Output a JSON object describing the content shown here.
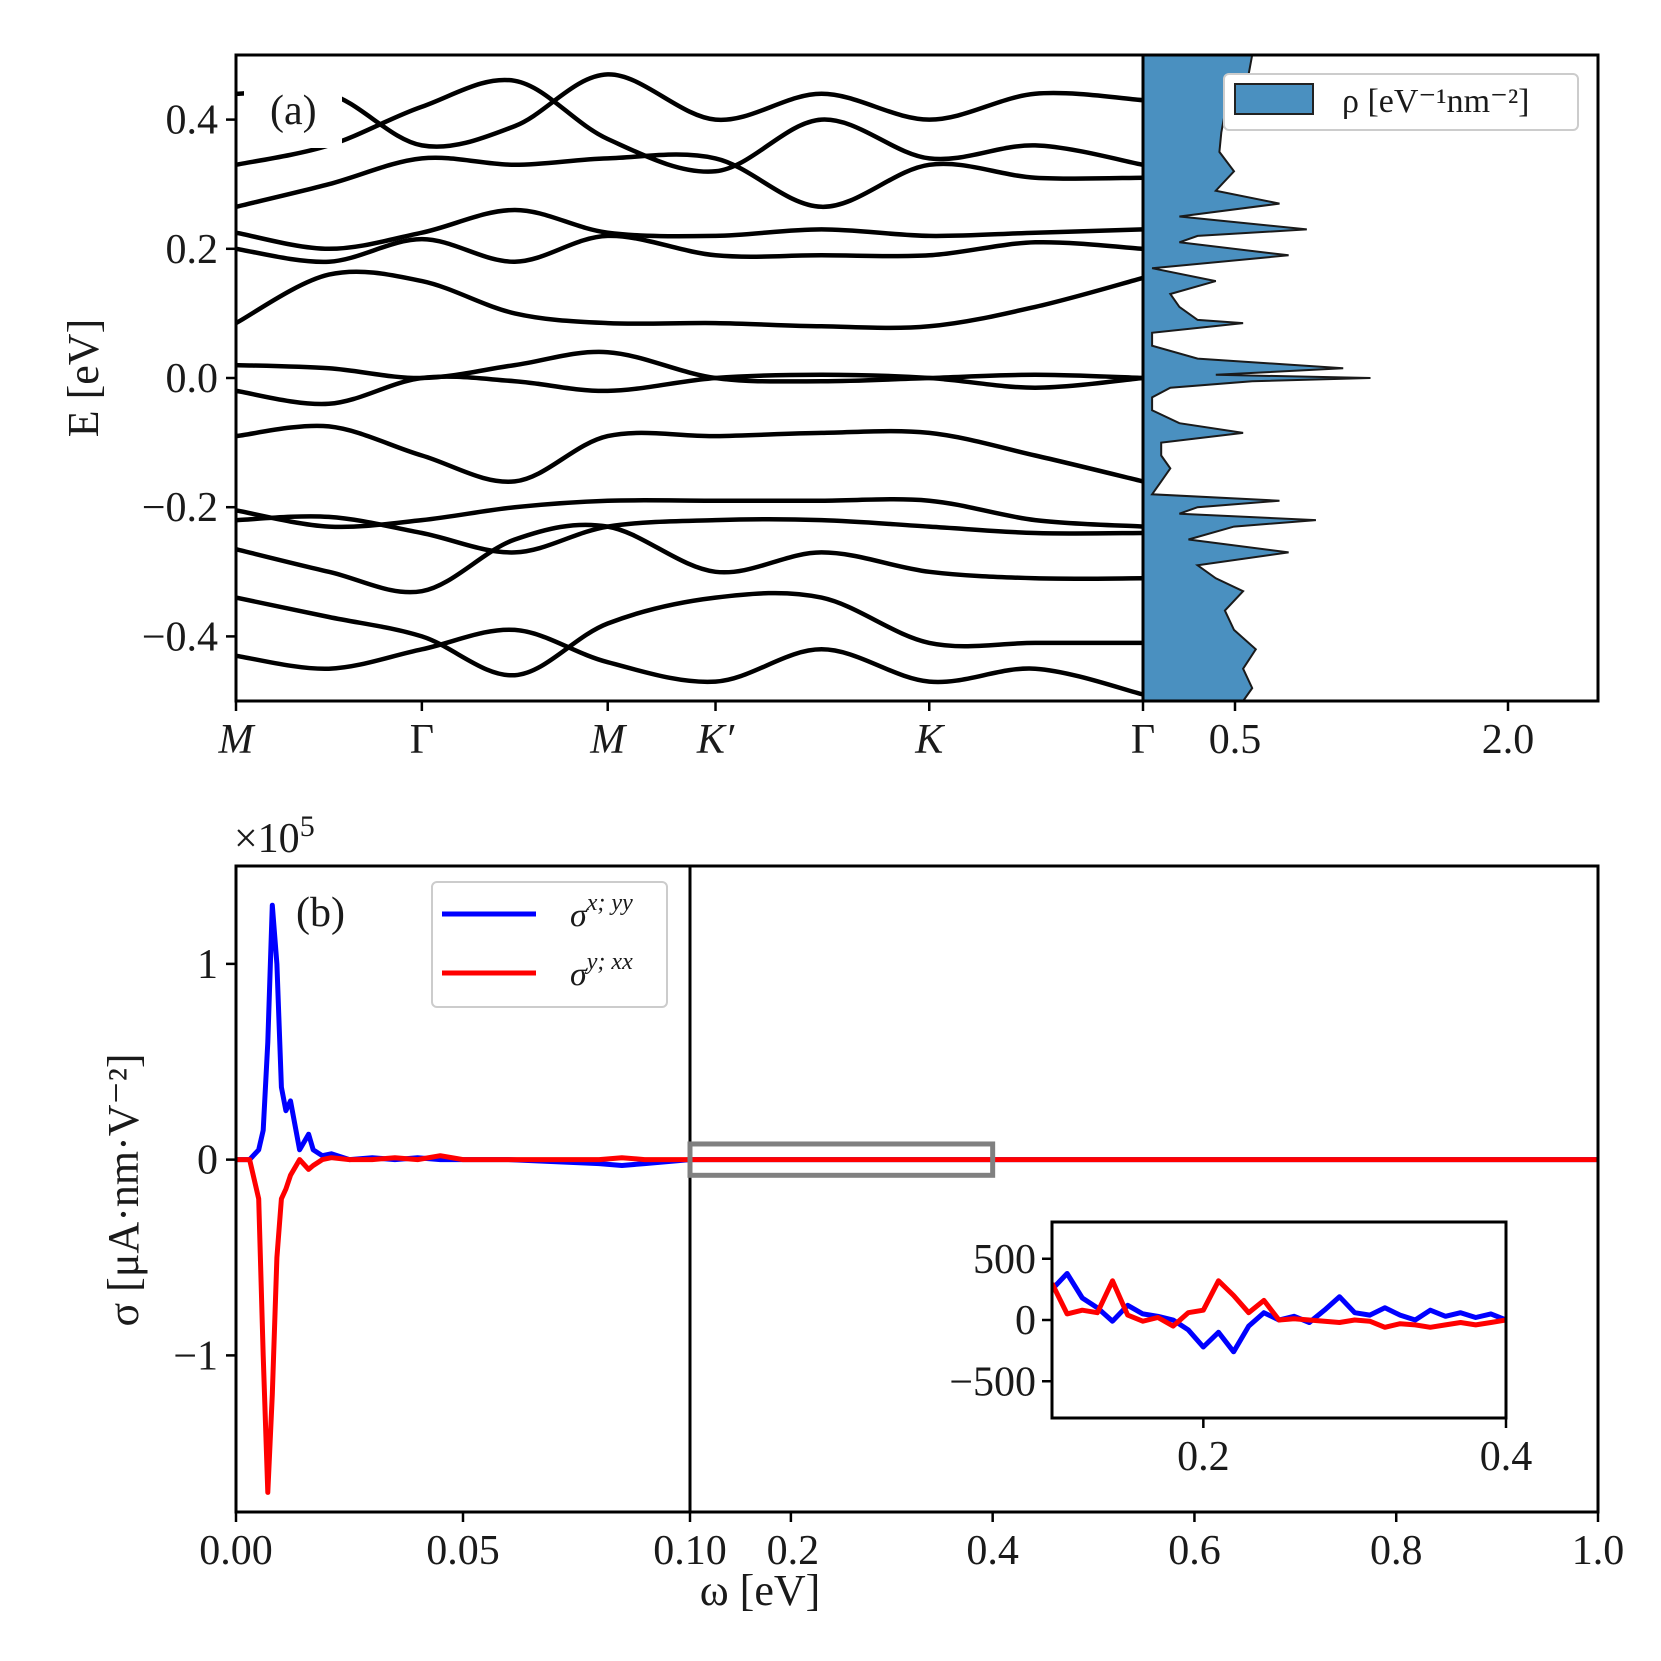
{
  "chart_data": [
    {
      "type": "line",
      "panel": "(a)",
      "ylabel": "E [eV]",
      "ylim": [
        -0.5,
        0.5
      ],
      "yticks": [
        "0.4",
        "0.2",
        "0.0",
        "−0.2",
        "−0.4"
      ],
      "ytick_values": [
        0.4,
        0.2,
        0.0,
        -0.2,
        -0.4
      ],
      "xticks": [
        "M",
        "Γ",
        "M",
        "K′",
        "K",
        "Γ"
      ],
      "xtick_values": [
        0,
        1,
        2,
        2.58,
        3.73,
        4.88
      ],
      "xlim": [
        0,
        4.88
      ],
      "description": "band structure along M-Γ-M-K'-K-Γ",
      "bands": [
        {
          "k": [
            0,
            0.5,
            1,
            1.5,
            2,
            2.58,
            3.15,
            3.73,
            4.3,
            4.88
          ],
          "E": [
            0.085,
            0.16,
            0.15,
            0.1,
            0.085,
            0.085,
            0.08,
            0.08,
            0.11,
            0.155
          ]
        },
        {
          "k": [
            0,
            0.5,
            1,
            1.5,
            2,
            2.58,
            3.15,
            3.73,
            4.3,
            4.88
          ],
          "E": [
            0.02,
            0.015,
            0.0,
            0.02,
            0.04,
            0.0,
            -0.005,
            0.0,
            0.005,
            0.0
          ]
        },
        {
          "k": [
            0,
            0.5,
            1,
            1.5,
            2,
            2.58,
            3.15,
            3.73,
            4.3,
            4.88
          ],
          "E": [
            -0.02,
            -0.04,
            0.0,
            -0.005,
            -0.02,
            0.0,
            0.005,
            0.0,
            -0.015,
            0.0
          ]
        },
        {
          "k": [
            0,
            0.5,
            1,
            1.5,
            2,
            2.58,
            3.15,
            3.73,
            4.3,
            4.88
          ],
          "E": [
            -0.09,
            -0.075,
            -0.12,
            -0.16,
            -0.09,
            -0.09,
            -0.085,
            -0.085,
            -0.12,
            -0.16
          ]
        },
        {
          "k": [
            0,
            0.5,
            1,
            1.5,
            2,
            2.58,
            3.15,
            3.73,
            4.3,
            4.88
          ],
          "E": [
            0.2,
            0.18,
            0.215,
            0.18,
            0.22,
            0.19,
            0.19,
            0.19,
            0.21,
            0.2
          ]
        },
        {
          "k": [
            0,
            0.5,
            1,
            1.5,
            2,
            2.58,
            3.15,
            3.73,
            4.3,
            4.88
          ],
          "E": [
            0.225,
            0.2,
            0.225,
            0.26,
            0.225,
            0.22,
            0.23,
            0.22,
            0.225,
            0.23
          ]
        },
        {
          "k": [
            0,
            0.5,
            1,
            1.5,
            2,
            2.58,
            3.15,
            3.73,
            4.3,
            4.88
          ],
          "E": [
            -0.205,
            -0.23,
            -0.22,
            -0.2,
            -0.19,
            -0.19,
            -0.19,
            -0.19,
            -0.22,
            -0.23
          ]
        },
        {
          "k": [
            0,
            0.5,
            1,
            1.5,
            2,
            2.58,
            3.15,
            3.73,
            4.3,
            4.88
          ],
          "E": [
            -0.22,
            -0.215,
            -0.24,
            -0.27,
            -0.23,
            -0.22,
            -0.22,
            -0.23,
            -0.24,
            -0.24
          ]
        },
        {
          "k": [
            0,
            0.5,
            1,
            1.5,
            2,
            2.58,
            3.15,
            3.73,
            4.3,
            4.88
          ],
          "E": [
            0.265,
            0.3,
            0.34,
            0.33,
            0.34,
            0.34,
            0.265,
            0.33,
            0.31,
            0.31
          ]
        },
        {
          "k": [
            0,
            0.5,
            1,
            1.5,
            2,
            2.58,
            3.15,
            3.73,
            4.3,
            4.88
          ],
          "E": [
            -0.265,
            -0.3,
            -0.33,
            -0.25,
            -0.23,
            -0.3,
            -0.27,
            -0.3,
            -0.31,
            -0.31
          ]
        },
        {
          "k": [
            0,
            0.5,
            1,
            1.5,
            2,
            2.58,
            3.15,
            3.73,
            4.3,
            4.88
          ],
          "E": [
            0.33,
            0.36,
            0.42,
            0.46,
            0.37,
            0.32,
            0.4,
            0.34,
            0.36,
            0.33
          ]
        },
        {
          "k": [
            0,
            0.5,
            1,
            1.5,
            2,
            2.58,
            3.15,
            3.73,
            4.3,
            4.88
          ],
          "E": [
            -0.34,
            -0.37,
            -0.4,
            -0.46,
            -0.38,
            -0.34,
            -0.34,
            -0.41,
            -0.41,
            -0.41
          ]
        },
        {
          "k": [
            0,
            0.5,
            1,
            1.5,
            2,
            2.58,
            3.15,
            3.73,
            4.3,
            4.88
          ],
          "E": [
            0.44,
            0.44,
            0.36,
            0.39,
            0.47,
            0.4,
            0.44,
            0.4,
            0.44,
            0.43
          ]
        },
        {
          "k": [
            0,
            0.5,
            1,
            1.5,
            2,
            2.58,
            3.15,
            3.73,
            4.3,
            4.88
          ],
          "E": [
            -0.43,
            -0.45,
            -0.42,
            -0.39,
            -0.44,
            -0.47,
            -0.42,
            -0.47,
            -0.45,
            -0.49
          ]
        }
      ]
    },
    {
      "type": "area",
      "legend": "ρ [eV⁻¹nm⁻²]",
      "xticks": [
        "0.5",
        "2.0"
      ],
      "xlim": [
        0,
        2.5
      ],
      "ylim": [
        -0.5,
        0.5
      ],
      "E": [
        0.5,
        0.47,
        0.44,
        0.41,
        0.38,
        0.35,
        0.32,
        0.29,
        0.27,
        0.25,
        0.23,
        0.22,
        0.21,
        0.19,
        0.17,
        0.15,
        0.13,
        0.11,
        0.09,
        0.085,
        0.07,
        0.05,
        0.03,
        0.015,
        0.005,
        0.0,
        -0.005,
        -0.015,
        -0.03,
        -0.05,
        -0.07,
        -0.085,
        -0.1,
        -0.12,
        -0.14,
        -0.16,
        -0.18,
        -0.19,
        -0.2,
        -0.21,
        -0.22,
        -0.23,
        -0.25,
        -0.27,
        -0.29,
        -0.31,
        -0.33,
        -0.36,
        -0.39,
        -0.42,
        -0.45,
        -0.48,
        -0.5
      ],
      "rho": [
        0.6,
        0.58,
        0.52,
        0.45,
        0.43,
        0.42,
        0.5,
        0.4,
        0.75,
        0.2,
        0.9,
        0.3,
        0.2,
        0.8,
        0.05,
        0.4,
        0.15,
        0.2,
        0.3,
        0.55,
        0.05,
        0.05,
        0.3,
        1.1,
        0.4,
        1.25,
        0.6,
        0.15,
        0.05,
        0.05,
        0.2,
        0.55,
        0.1,
        0.1,
        0.15,
        0.1,
        0.05,
        0.75,
        0.3,
        0.2,
        0.95,
        0.5,
        0.25,
        0.8,
        0.3,
        0.4,
        0.55,
        0.45,
        0.5,
        0.62,
        0.55,
        0.6,
        0.55
      ]
    },
    {
      "type": "line",
      "panel": "(b)",
      "ylabel": "σ [μA·nm·V⁻²]",
      "xlabel": "ω [eV]",
      "y_scale_label": "×10",
      "y_scale_exp": "5",
      "ylim": [
        -1.8,
        1.5
      ],
      "yticks": [
        "1",
        "0",
        "−1"
      ],
      "ytick_values": [
        1,
        0,
        -1
      ],
      "xticks": [
        "0.00",
        "0.05",
        "0.10",
        "0.2",
        "0.4",
        "0.6",
        "0.8",
        "1.0"
      ],
      "xtick_values": [
        0.0,
        0.05,
        0.1,
        0.2,
        0.4,
        0.6,
        0.8,
        1.0
      ],
      "x_break_note": "piecewise axis: [0, 0.10] then [0.10, 1.0]",
      "series": [
        {
          "name": "σx;yy",
          "sup": "x; yy",
          "color": "#0000ff",
          "x": [
            0.0,
            0.003,
            0.005,
            0.006,
            0.007,
            0.008,
            0.009,
            0.01,
            0.011,
            0.012,
            0.014,
            0.016,
            0.017,
            0.019,
            0.021,
            0.025,
            0.03,
            0.035,
            0.04,
            0.045,
            0.05,
            0.06,
            0.07,
            0.08,
            0.085,
            0.09,
            0.1,
            0.2,
            0.4,
            0.6,
            0.8,
            1.0
          ],
          "y": [
            0.0,
            0.0,
            0.05,
            0.15,
            0.6,
            1.3,
            1.0,
            0.37,
            0.25,
            0.3,
            0.05,
            0.13,
            0.05,
            0.02,
            0.03,
            0.0,
            0.01,
            0.0,
            0.01,
            0.0,
            0.0,
            0.0,
            -0.01,
            -0.02,
            -0.03,
            -0.02,
            0.0,
            0.0,
            0.0,
            0.0,
            0.0,
            0.0
          ]
        },
        {
          "name": "σy;xx",
          "sup": "y; xx",
          "color": "#ff0000",
          "x": [
            0.0,
            0.003,
            0.005,
            0.006,
            0.007,
            0.008,
            0.009,
            0.01,
            0.011,
            0.012,
            0.014,
            0.016,
            0.017,
            0.019,
            0.021,
            0.025,
            0.03,
            0.035,
            0.04,
            0.045,
            0.05,
            0.06,
            0.07,
            0.08,
            0.085,
            0.09,
            0.1,
            0.2,
            0.4,
            0.6,
            0.8,
            1.0
          ],
          "y": [
            0.0,
            0.0,
            -0.2,
            -1.0,
            -1.7,
            -1.2,
            -0.5,
            -0.2,
            -0.15,
            -0.08,
            0.0,
            -0.05,
            -0.03,
            0.0,
            0.01,
            0.0,
            0.0,
            0.01,
            0.0,
            0.02,
            0.0,
            0.0,
            0.0,
            0.0,
            0.01,
            0.0,
            0.0,
            0.0,
            0.0,
            0.0,
            0.0,
            0.0
          ]
        }
      ],
      "highlight_box": {
        "x0": 0.1,
        "x1": 0.4,
        "y0": -0.08,
        "y1": 0.08
      },
      "inset": {
        "xlim": [
          0.1,
          0.4
        ],
        "ylim": [
          -800,
          800
        ],
        "xticks": [
          "0.2",
          "0.4"
        ],
        "xtick_values": [
          0.2,
          0.4
        ],
        "yticks": [
          "500",
          "0",
          "−500"
        ],
        "ytick_values": [
          500,
          0,
          -500
        ],
        "series": [
          {
            "name": "σx;yy",
            "color": "#0000ff",
            "x": [
              0.1,
              0.11,
              0.12,
              0.13,
              0.14,
              0.15,
              0.16,
              0.17,
              0.18,
              0.19,
              0.2,
              0.21,
              0.22,
              0.23,
              0.24,
              0.25,
              0.26,
              0.27,
              0.28,
              0.29,
              0.3,
              0.31,
              0.32,
              0.33,
              0.34,
              0.35,
              0.36,
              0.37,
              0.38,
              0.39,
              0.4
            ],
            "y": [
              250,
              380,
              180,
              100,
              -10,
              120,
              50,
              30,
              0,
              -80,
              -220,
              -100,
              -260,
              -50,
              60,
              0,
              30,
              -20,
              80,
              190,
              60,
              40,
              100,
              40,
              0,
              80,
              30,
              60,
              20,
              50,
              0
            ]
          },
          {
            "name": "σy;xx",
            "color": "#ff0000",
            "x": [
              0.1,
              0.11,
              0.12,
              0.13,
              0.14,
              0.15,
              0.16,
              0.17,
              0.18,
              0.19,
              0.2,
              0.21,
              0.22,
              0.23,
              0.24,
              0.25,
              0.26,
              0.27,
              0.28,
              0.29,
              0.3,
              0.31,
              0.32,
              0.33,
              0.34,
              0.35,
              0.36,
              0.37,
              0.38,
              0.39,
              0.4
            ],
            "y": [
              300,
              50,
              80,
              60,
              320,
              40,
              -10,
              20,
              -50,
              60,
              80,
              320,
              200,
              60,
              160,
              0,
              10,
              0,
              -10,
              -20,
              0,
              -10,
              -60,
              -30,
              -40,
              -60,
              -40,
              -20,
              -40,
              -20,
              0
            ]
          }
        ]
      },
      "legend": [
        "σx;yy",
        "σy;xx"
      ]
    }
  ]
}
